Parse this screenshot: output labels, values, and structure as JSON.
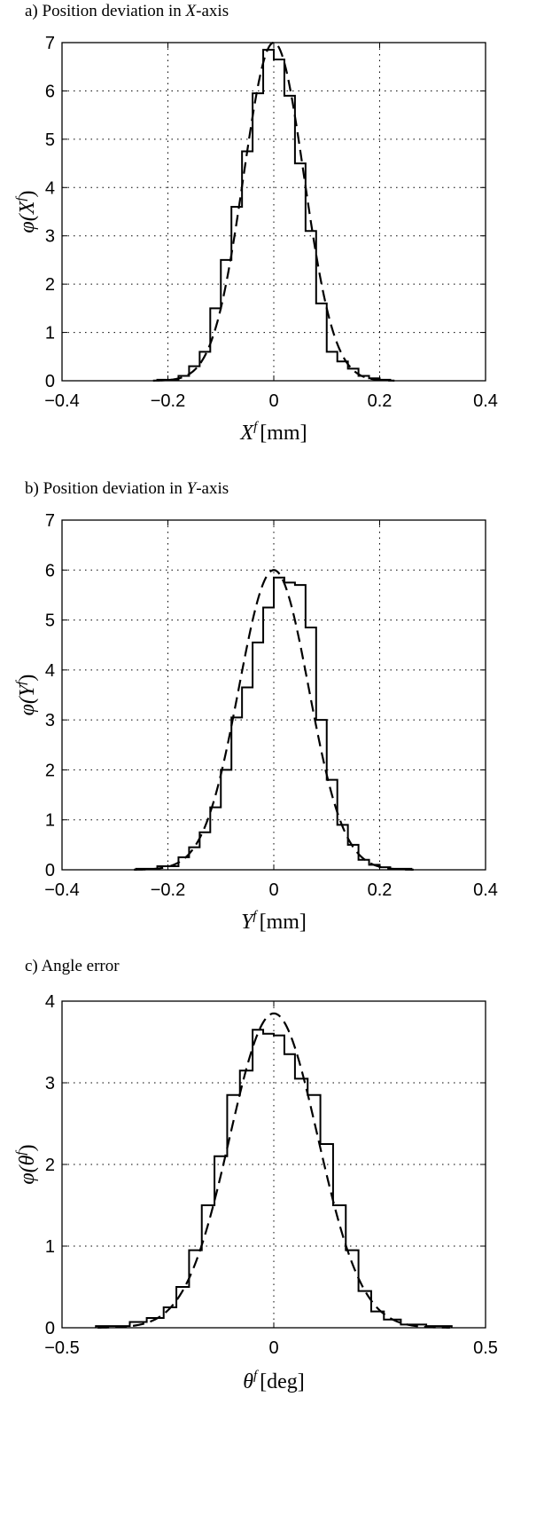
{
  "chart_data": [
    {
      "type": "line",
      "panel_prefix": "a) Position deviation in ",
      "panel_var": "X",
      "panel_suffix": "-axis",
      "xlabel": "X^f [mm]",
      "xlabel_main": "X",
      "xlabel_sup": "f",
      "xlabel_unit": "[mm]",
      "ylabel": "φ(X^f)",
      "ylabel_pre": "φ(X",
      "ylabel_sup": "f",
      "ylabel_post": ")",
      "xlim": [
        -0.4,
        0.4
      ],
      "ylim": [
        0,
        7
      ],
      "xticks": [
        -0.4,
        -0.2,
        0,
        0.2,
        0.4
      ],
      "xtick_labels": [
        "−0.4",
        "−0.2",
        "0",
        "0.2",
        "0.4"
      ],
      "yticks": [
        0,
        1,
        2,
        3,
        4,
        5,
        6,
        7
      ],
      "ytick_labels": [
        "0",
        "1",
        "2",
        "3",
        "4",
        "5",
        "6",
        "7"
      ],
      "grid": true,
      "series": [
        {
          "style": "histogram-step",
          "bin_edges": [
            -0.22,
            -0.18,
            -0.16,
            -0.14,
            -0.12,
            -0.1,
            -0.08,
            -0.06,
            -0.04,
            -0.02,
            0,
            0.02,
            0.04,
            0.06,
            0.08,
            0.1,
            0.12,
            0.14,
            0.16,
            0.18,
            0.2,
            0.22
          ],
          "values": [
            0.02,
            0.1,
            0.3,
            0.6,
            1.5,
            2.5,
            3.6,
            4.75,
            5.95,
            6.85,
            6.65,
            5.9,
            4.5,
            3.1,
            1.6,
            0.6,
            0.4,
            0.25,
            0.1,
            0.05,
            0.02
          ]
        },
        {
          "style": "dashed-normal",
          "mean": 0,
          "sigma": 0.057,
          "peak": 7.0
        }
      ]
    },
    {
      "type": "line",
      "panel_prefix": "b) Position deviation in ",
      "panel_var": "Y",
      "panel_suffix": "-axis",
      "xlabel": "Y^f [mm]",
      "xlabel_main": "Y",
      "xlabel_sup": "f",
      "xlabel_unit": "[mm]",
      "ylabel": "φ(Y^f)",
      "ylabel_pre": "φ(Y",
      "ylabel_sup": "f",
      "ylabel_post": ")",
      "xlim": [
        -0.4,
        0.4
      ],
      "ylim": [
        0,
        7
      ],
      "xticks": [
        -0.4,
        -0.2,
        0,
        0.2,
        0.4
      ],
      "xtick_labels": [
        "−0.4",
        "−0.2",
        "0",
        "0.2",
        "0.4"
      ],
      "yticks": [
        0,
        1,
        2,
        3,
        4,
        5,
        6,
        7
      ],
      "ytick_labels": [
        "0",
        "1",
        "2",
        "3",
        "4",
        "5",
        "6",
        "7"
      ],
      "grid": true,
      "series": [
        {
          "style": "histogram-step",
          "bin_edges": [
            -0.26,
            -0.22,
            -0.18,
            -0.16,
            -0.14,
            -0.12,
            -0.1,
            -0.08,
            -0.06,
            -0.04,
            -0.02,
            0,
            0.02,
            0.04,
            0.06,
            0.08,
            0.1,
            0.12,
            0.14,
            0.16,
            0.18,
            0.2,
            0.22,
            0.26
          ],
          "values": [
            0.02,
            0.07,
            0.25,
            0.45,
            0.75,
            1.25,
            2.0,
            3.05,
            3.65,
            4.55,
            5.25,
            5.85,
            5.75,
            5.7,
            4.85,
            3.0,
            1.8,
            0.9,
            0.5,
            0.2,
            0.1,
            0.05,
            0.02
          ]
        },
        {
          "style": "dashed-normal",
          "mean": 0,
          "sigma": 0.066,
          "peak": 6.0
        }
      ]
    },
    {
      "type": "line",
      "panel_prefix": "c) Angle error",
      "panel_var": "",
      "panel_suffix": "",
      "xlabel": "θ^f [deg]",
      "xlabel_main": "θ",
      "xlabel_sup": "f",
      "xlabel_unit": "[deg]",
      "ylabel": "φ(θ^f)",
      "ylabel_pre": "φ(θ",
      "ylabel_sup": "f",
      "ylabel_post": ")",
      "xlim": [
        -0.5,
        0.5
      ],
      "ylim": [
        0,
        4
      ],
      "xticks": [
        -0.5,
        0,
        0.5
      ],
      "xtick_labels": [
        "−0.5",
        "0",
        "0.5"
      ],
      "yticks": [
        0,
        1,
        2,
        3,
        4
      ],
      "ytick_labels": [
        "0",
        "1",
        "2",
        "3",
        "4"
      ],
      "grid": true,
      "series": [
        {
          "style": "histogram-step",
          "bin_edges": [
            -0.42,
            -0.34,
            -0.3,
            -0.26,
            -0.23,
            -0.2,
            -0.17,
            -0.14,
            -0.11,
            -0.08,
            -0.05,
            -0.025,
            0,
            0.025,
            0.05,
            0.08,
            0.11,
            0.14,
            0.17,
            0.2,
            0.23,
            0.26,
            0.3,
            0.36,
            0.42
          ],
          "values": [
            0.02,
            0.07,
            0.12,
            0.25,
            0.5,
            0.95,
            1.5,
            2.1,
            2.85,
            3.15,
            3.65,
            3.6,
            3.58,
            3.35,
            3.05,
            2.85,
            2.25,
            1.5,
            0.95,
            0.45,
            0.2,
            0.1,
            0.04,
            0.02
          ]
        },
        {
          "style": "dashed-normal",
          "mean": 0,
          "sigma": 0.104,
          "peak": 3.85
        }
      ]
    }
  ]
}
